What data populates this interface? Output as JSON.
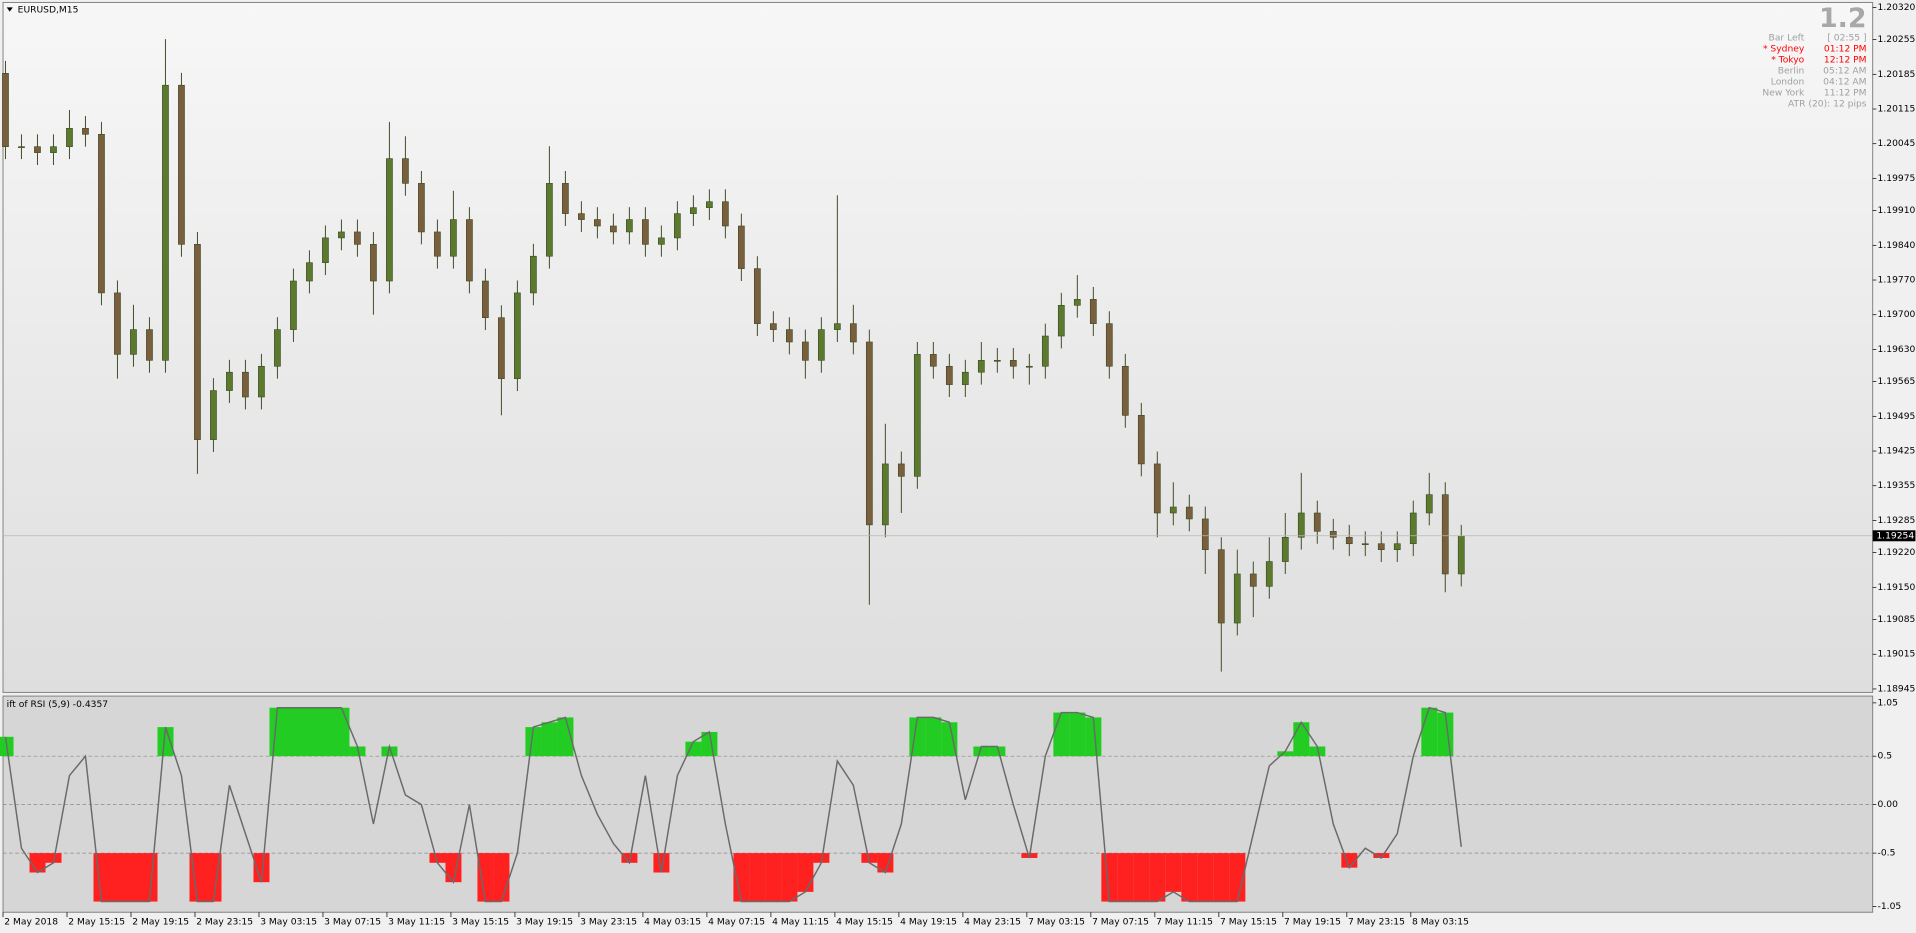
{
  "chart_data": [
    {
      "type": "candlestick",
      "title": "EURUSD,M15",
      "categories": [
        "2 May 2018",
        null,
        null,
        null,
        "2 May 15:15",
        null,
        null,
        null,
        "2 May 19:15",
        null,
        null,
        null,
        "2 May 23:15",
        null,
        null,
        null,
        "3 May 03:15",
        null,
        null,
        null,
        "3 May 07:15",
        null,
        null,
        null,
        "3 May 11:15",
        null,
        null,
        null,
        "3 May 15:15",
        null,
        null,
        null,
        "3 May 19:15",
        null,
        null,
        null,
        "3 May 23:15",
        null,
        null,
        null,
        "4 May 03:15",
        null,
        null,
        null,
        "4 May 07:15",
        null,
        null,
        null,
        "4 May 11:15",
        null,
        null,
        null,
        "4 May 15:15",
        null,
        null,
        null,
        "4 May 19:15",
        null,
        null,
        null,
        "4 May 23:15",
        null,
        null,
        null,
        "7 May 03:15",
        null,
        null,
        null,
        "7 May 07:15",
        null,
        null,
        null,
        "7 May 11:15",
        null,
        null,
        null,
        "7 May 15:15",
        null,
        null,
        null,
        "7 May 19:15",
        null,
        null,
        null,
        "7 May 23:15",
        null,
        null,
        null,
        "8 May 03:15",
        null,
        null,
        null
      ],
      "open": [
        1.20187,
        1.20039,
        1.20039,
        1.20027,
        1.20039,
        1.20076,
        1.20064,
        1.19744,
        1.1962,
        1.1967,
        1.19608,
        1.20163,
        1.19842,
        1.19448,
        1.19547,
        1.19584,
        1.19534,
        1.19596,
        1.1967,
        1.19768,
        1.19805,
        1.19855,
        1.19867,
        1.19842,
        1.19768,
        1.20015,
        1.19965,
        1.19867,
        1.19818,
        1.19892,
        1.19768,
        1.19694,
        1.19571,
        1.19744,
        1.19818,
        1.19965,
        1.19904,
        1.19892,
        1.19879,
        1.19867,
        1.19892,
        1.19842,
        1.19855,
        1.19904,
        1.19916,
        1.19928,
        1.19879,
        1.19793,
        1.19682,
        1.1967,
        1.19645,
        1.19608,
        1.1967,
        1.19682,
        1.19645,
        1.19276,
        1.19399,
        1.19374,
        1.1962,
        1.19596,
        1.19559,
        1.19584,
        1.19608,
        1.19608,
        1.19596,
        1.19596,
        1.19657,
        1.19719,
        1.19731,
        1.19682,
        1.19596,
        1.19497,
        1.19399,
        1.193,
        1.19312,
        1.19288,
        1.19226,
        1.19078,
        1.19177,
        1.19152,
        1.19202,
        1.19251,
        1.193,
        1.19263,
        1.19251,
        1.19238,
        1.19238,
        1.19226,
        1.19238,
        1.193,
        1.19337,
        1.19177
      ],
      "high": [
        1.20212,
        1.20064,
        1.20064,
        1.20064,
        1.20113,
        1.20101,
        1.20089,
        1.19769,
        1.1972,
        1.19695,
        1.20256,
        1.20188,
        1.19867,
        1.19572,
        1.19609,
        1.19609,
        1.19621,
        1.19695,
        1.19793,
        1.1983,
        1.1988,
        1.19892,
        1.19892,
        1.19867,
        1.20089,
        1.2006,
        1.1999,
        1.19892,
        1.1995,
        1.19917,
        1.19793,
        1.19719,
        1.19769,
        1.19843,
        1.2004,
        1.1999,
        1.19929,
        1.19917,
        1.19904,
        1.19917,
        1.19917,
        1.1988,
        1.19929,
        1.19941,
        1.19953,
        1.19953,
        1.19904,
        1.19818,
        1.19707,
        1.19695,
        1.1967,
        1.19695,
        1.19941,
        1.1972,
        1.1967,
        1.1948,
        1.19424,
        1.19645,
        1.19645,
        1.19621,
        1.19609,
        1.19645,
        1.19633,
        1.19633,
        1.19621,
        1.19682,
        1.19744,
        1.1978,
        1.19756,
        1.19707,
        1.19621,
        1.19522,
        1.19424,
        1.19362,
        1.19337,
        1.19313,
        1.19251,
        1.19226,
        1.19202,
        1.19251,
        1.193,
        1.19381,
        1.19325,
        1.19288,
        1.19276,
        1.19263,
        1.19263,
        1.19263,
        1.19325,
        1.19381,
        1.19362,
        1.19276
      ],
      "low": [
        1.20014,
        1.20014,
        1.20002,
        1.20002,
        1.20014,
        1.20039,
        1.19719,
        1.19571,
        1.19595,
        1.19583,
        1.19583,
        1.19817,
        1.19379,
        1.19423,
        1.19522,
        1.19509,
        1.19509,
        1.19571,
        1.19645,
        1.19743,
        1.1978,
        1.1983,
        1.19817,
        1.197,
        1.19743,
        1.1994,
        1.19842,
        1.19793,
        1.19793,
        1.19743,
        1.19669,
        1.19497,
        1.19546,
        1.19719,
        1.19793,
        1.19879,
        1.19867,
        1.19854,
        1.19842,
        1.19842,
        1.19817,
        1.19817,
        1.1983,
        1.19879,
        1.19891,
        1.19854,
        1.19768,
        1.19657,
        1.19645,
        1.1962,
        1.19571,
        1.19583,
        1.19645,
        1.1962,
        1.19115,
        1.19251,
        1.193,
        1.19349,
        1.19571,
        1.19534,
        1.19534,
        1.19559,
        1.19583,
        1.19571,
        1.19559,
        1.19571,
        1.19632,
        1.19694,
        1.19657,
        1.19571,
        1.19472,
        1.19374,
        1.19251,
        1.19275,
        1.19263,
        1.19177,
        1.1898,
        1.19053,
        1.1909,
        1.19127,
        1.19177,
        1.19226,
        1.19238,
        1.19226,
        1.19213,
        1.19213,
        1.19201,
        1.19201,
        1.19213,
        1.19275,
        1.1914,
        1.19152
      ],
      "close": [
        1.20039,
        1.20039,
        1.20027,
        1.20039,
        1.20076,
        1.20064,
        1.19744,
        1.1962,
        1.1967,
        1.19608,
        1.20163,
        1.19842,
        1.19448,
        1.19547,
        1.19584,
        1.19534,
        1.19596,
        1.1967,
        1.19768,
        1.19805,
        1.19855,
        1.19867,
        1.19842,
        1.19768,
        1.20015,
        1.19965,
        1.19867,
        1.19818,
        1.19892,
        1.19768,
        1.19694,
        1.19571,
        1.19744,
        1.19818,
        1.19965,
        1.19904,
        1.19892,
        1.19879,
        1.19867,
        1.19892,
        1.19842,
        1.19855,
        1.19904,
        1.19916,
        1.19928,
        1.19879,
        1.19793,
        1.19682,
        1.1967,
        1.19645,
        1.19608,
        1.1967,
        1.19682,
        1.19645,
        1.19276,
        1.19399,
        1.19374,
        1.1962,
        1.19596,
        1.19559,
        1.19584,
        1.19608,
        1.19608,
        1.19596,
        1.19596,
        1.19657,
        1.19719,
        1.19731,
        1.19682,
        1.19596,
        1.19497,
        1.19399,
        1.193,
        1.19312,
        1.19288,
        1.19226,
        1.19078,
        1.19177,
        1.19152,
        1.19202,
        1.19251,
        1.193,
        1.19263,
        1.19251,
        1.19238,
        1.19238,
        1.19226,
        1.19238,
        1.193,
        1.19337,
        1.19177,
        1.19254
      ],
      "up_color": "#5b7a2e",
      "down_color": "#7a5f3c",
      "current_price": 1.19254,
      "ylim": [
        1.18938,
        1.2033
      ],
      "yticks": [
        {
          "value": 1.2032,
          "label": "1.20320"
        },
        1.20255,
        1.20185,
        1.20115,
        1.20045,
        1.19975,
        {
          "value": 1.1991,
          "label": "1.19910"
        },
        {
          "value": 1.1984,
          "label": "1.19840"
        },
        {
          "value": 1.1977,
          "label": "1.19770"
        },
        {
          "value": 1.197,
          "label": "1.19700"
        },
        {
          "value": 1.1963,
          "label": "1.19630"
        },
        1.19565,
        1.19495,
        1.19425,
        1.19355,
        1.19285,
        {
          "value": 1.1922,
          "label": "1.19220"
        },
        {
          "value": 1.1915,
          "label": "1.19150"
        },
        1.19085,
        1.19015,
        1.18945
      ]
    },
    {
      "type": "line",
      "title": "ift of RSI (5,9) -0.4357",
      "values": [
        0.7,
        -0.45,
        -0.7,
        -0.6,
        0.3,
        0.5,
        -1.0,
        -1.0,
        -1.0,
        -1.0,
        0.8,
        0.3,
        -1.0,
        -1.0,
        0.2,
        -0.3,
        -0.8,
        1.0,
        1.0,
        1.0,
        1.0,
        1.0,
        0.6,
        -0.2,
        0.6,
        0.1,
        0.0,
        -0.6,
        -0.8,
        0.0,
        -1.0,
        -1.0,
        -0.5,
        0.8,
        0.85,
        0.9,
        0.3,
        -0.1,
        -0.4,
        -0.6,
        0.3,
        -0.7,
        0.3,
        0.65,
        0.75,
        -0.2,
        -1.0,
        -1.0,
        -1.0,
        -1.0,
        -0.9,
        -0.6,
        0.45,
        0.2,
        -0.6,
        -0.7,
        -0.2,
        0.9,
        0.9,
        0.85,
        0.05,
        0.6,
        0.6,
        0.0,
        -0.55,
        0.5,
        0.95,
        0.95,
        0.9,
        -1.0,
        -1.0,
        -1.0,
        -1.0,
        -0.9,
        -1.0,
        -1.0,
        -1.0,
        -1.0,
        -0.3,
        0.4,
        0.55,
        0.85,
        0.6,
        -0.2,
        -0.65,
        -0.45,
        -0.55,
        -0.3,
        0.5,
        1.0,
        0.95,
        -0.4357
      ],
      "color": "#6a6a6a",
      "upper_color": "#22cc22",
      "lower_color": "#ff2020",
      "levels": [
        0.5,
        0,
        -0.5
      ],
      "ylim": [
        -1.11,
        1.12
      ],
      "yticks": [
        1.05,
        0.5,
        {
          "value": 0,
          "label": "0.00"
        },
        -0.5,
        -1.05
      ]
    }
  ],
  "info_panel": {
    "headline": "1.2",
    "rows": [
      {
        "label": "Bar Left",
        "value": "[ 02:55 ]",
        "color": "#a0a0a0"
      },
      {
        "label": "* Sydney",
        "value": "01:12 PM",
        "color": "#ff0000"
      },
      {
        "label": "* Tokyo",
        "value": "12:12 PM",
        "color": "#ff0000"
      },
      {
        "label": "Berlin",
        "value": "05:12 AM",
        "color": "#a0a0a0"
      },
      {
        "label": "London",
        "value": "04:12 AM",
        "color": "#a0a0a0"
      },
      {
        "label": "New York",
        "value": "11:12 PM",
        "color": "#a0a0a0"
      }
    ],
    "footer": "ATR (20): 12 pips"
  }
}
